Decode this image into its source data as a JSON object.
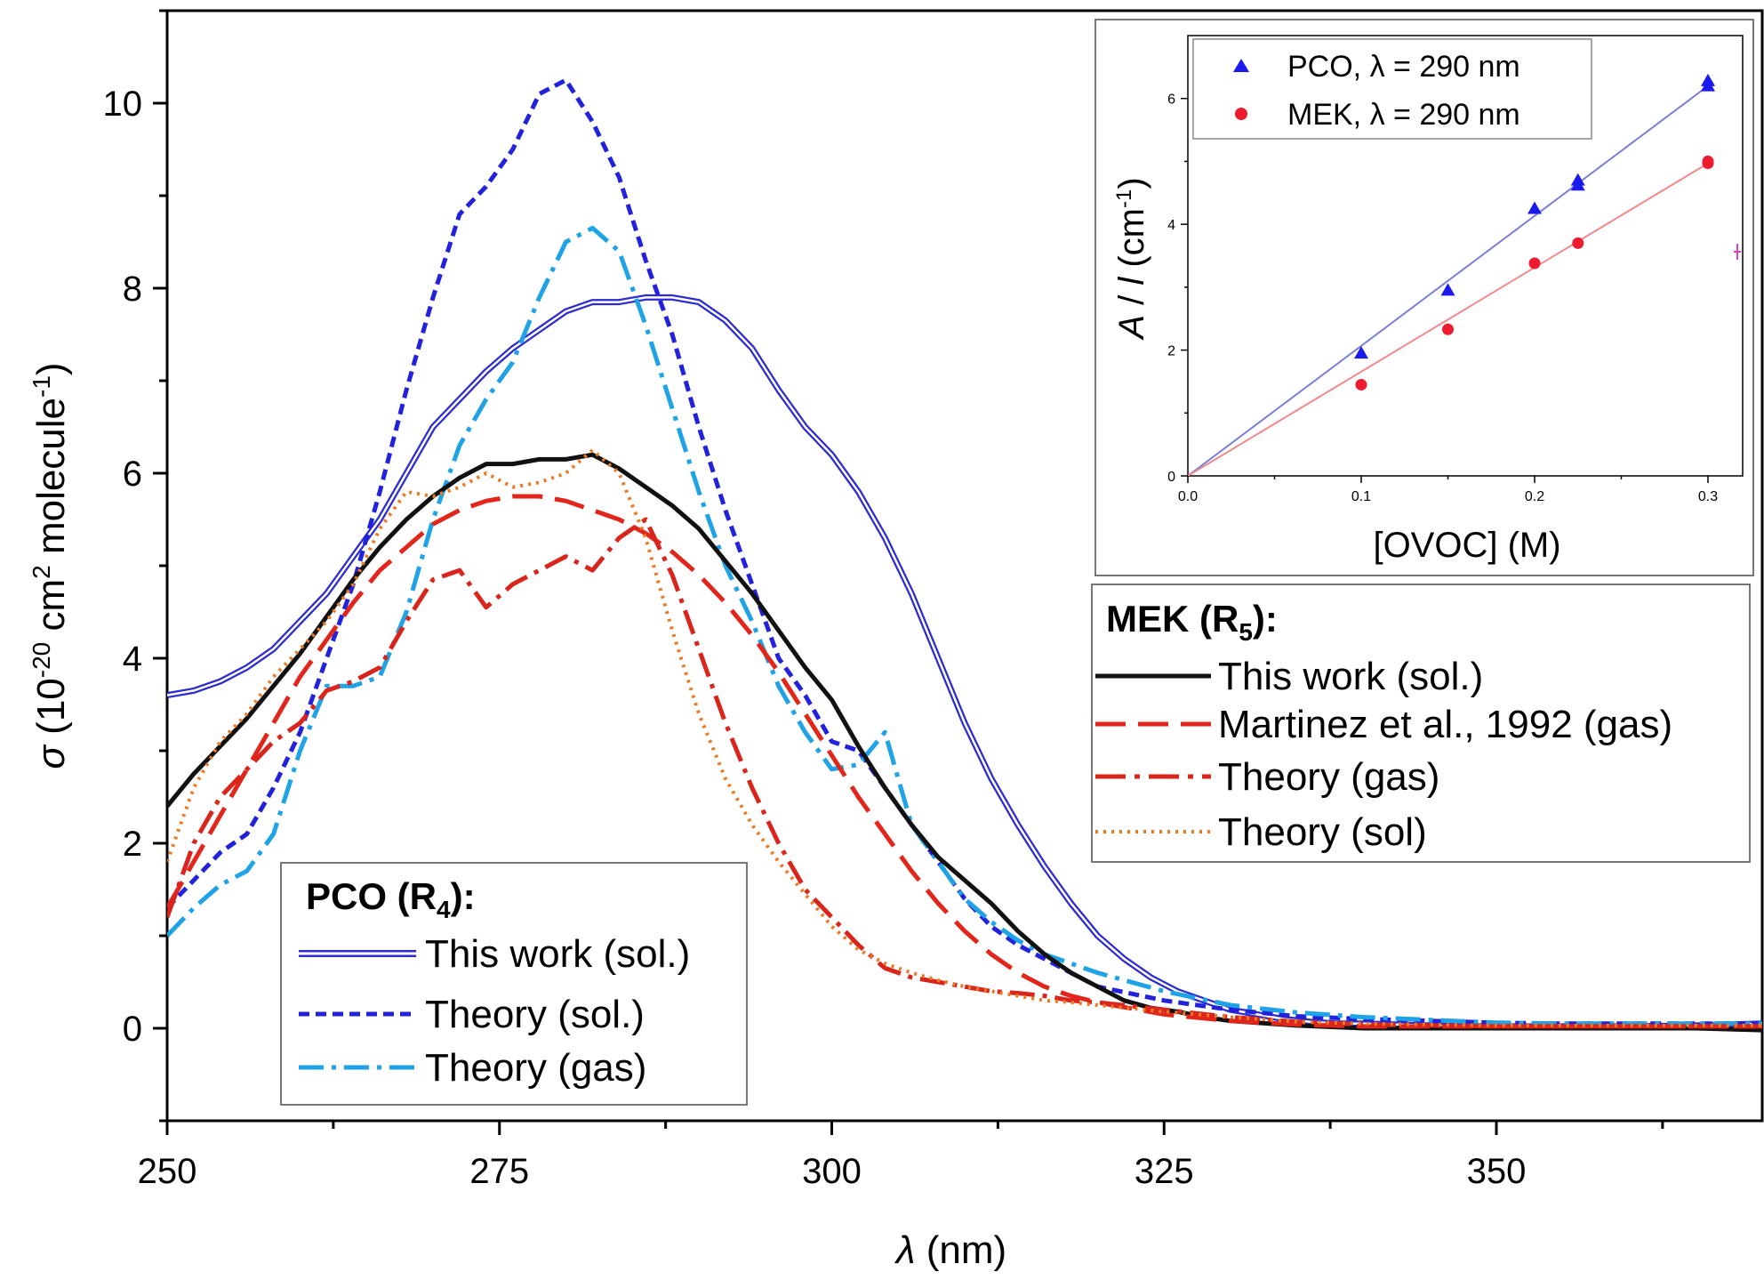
{
  "main_chart": {
    "xlabel": "(nm)",
    "xlabel_symbol": "λ",
    "ylabel": "(10-20 cm2 molecule-1)",
    "ylabel_parts": {
      "symbol": "σ",
      "pre": " (10",
      "sup1": "-20",
      "mid": " cm",
      "sup2": "2",
      "post": " molecule",
      "sup3": "-1",
      "end": ")"
    },
    "x_ticks": [
      "250",
      "275",
      "300",
      "325",
      "350"
    ],
    "y_ticks": [
      "0",
      "2",
      "4",
      "6",
      "8",
      "10"
    ],
    "legend_pco": {
      "heading": "PCO (R4):",
      "heading_main": "PCO (R",
      "heading_sub": "4",
      "heading_end": "):",
      "entries": [
        "This work (sol.)",
        "Theory (sol.)",
        "Theory (gas)"
      ]
    },
    "legend_mek": {
      "heading": "MEK (R5):",
      "heading_main": "MEK (R",
      "heading_sub": "5",
      "heading_end": "):",
      "entries": [
        "This work (sol.)",
        "Martinez et al., 1992 (gas)",
        "Theory (gas)",
        "Theory (sol)"
      ]
    }
  },
  "inset_chart": {
    "xlabel": "[OVOC] (M)",
    "ylabel": "A / l (cm-1)",
    "ylabel_parts": {
      "a": "A",
      "slash": " / ",
      "l": "l",
      "unit": " (cm",
      "sup": "-1",
      "end": ")"
    },
    "x_ticks": [
      "0.0",
      "0.1",
      "0.2",
      "0.3"
    ],
    "y_ticks": [
      "0",
      "2",
      "4",
      "6"
    ],
    "legend": [
      "PCO, λ = 290 nm",
      "MEK, λ = 290 nm"
    ]
  },
  "chart_data": [
    {
      "type": "line",
      "xlabel": "λ (nm)",
      "ylabel": "σ (10-20 cm2 molecule-1)",
      "xlim": [
        250,
        370
      ],
      "ylim": [
        -1,
        11
      ],
      "series": [
        {
          "name": "PCO This work (sol.)",
          "color": "#2b2bcf",
          "style": "double",
          "x": [
            250,
            252,
            254,
            256,
            258,
            260,
            262,
            264,
            266,
            268,
            270,
            272,
            274,
            276,
            278,
            280,
            282,
            284,
            286,
            288,
            290,
            292,
            294,
            296,
            298,
            300,
            302,
            304,
            306,
            308,
            310,
            312,
            314,
            316,
            318,
            320,
            322,
            324,
            326,
            328,
            330,
            332,
            334,
            336,
            338,
            340,
            345,
            350,
            355,
            360,
            365,
            370
          ],
          "y": [
            3.6,
            3.65,
            3.75,
            3.9,
            4.1,
            4.4,
            4.7,
            5.1,
            5.5,
            6.0,
            6.5,
            6.8,
            7.1,
            7.35,
            7.55,
            7.75,
            7.85,
            7.85,
            7.9,
            7.9,
            7.85,
            7.65,
            7.35,
            6.9,
            6.5,
            6.2,
            5.8,
            5.3,
            4.7,
            4.0,
            3.3,
            2.7,
            2.2,
            1.75,
            1.35,
            1.0,
            0.75,
            0.55,
            0.4,
            0.3,
            0.2,
            0.15,
            0.1,
            0.07,
            0.05,
            0.05,
            0.03,
            0.02,
            0.02,
            0.02,
            0.03,
            0.05
          ]
        },
        {
          "name": "PCO Theory (sol.)",
          "color": "#2222dd",
          "style": "short-dash",
          "x": [
            250,
            252,
            254,
            256,
            258,
            260,
            262,
            264,
            266,
            268,
            270,
            272,
            274,
            276,
            278,
            280,
            282,
            284,
            286,
            288,
            290,
            292,
            294,
            296,
            298,
            300,
            302,
            304,
            306,
            308,
            310,
            312,
            314,
            316,
            318,
            320,
            325,
            330,
            335,
            340,
            345,
            350,
            355,
            360,
            365,
            370
          ],
          "y": [
            1.3,
            1.6,
            1.9,
            2.1,
            2.6,
            3.2,
            4.0,
            4.8,
            5.8,
            6.9,
            7.9,
            8.8,
            9.1,
            9.5,
            10.1,
            10.25,
            9.8,
            9.2,
            8.3,
            7.5,
            6.5,
            5.6,
            4.8,
            4.0,
            3.6,
            3.1,
            3.0,
            2.6,
            2.2,
            1.8,
            1.4,
            1.1,
            0.9,
            0.75,
            0.6,
            0.45,
            0.3,
            0.2,
            0.13,
            0.1,
            0.08,
            0.06,
            0.05,
            0.05,
            0.05,
            0.05
          ]
        },
        {
          "name": "PCO Theory (gas)",
          "color": "#1fa3e6",
          "style": "dash-dot",
          "x": [
            250,
            252,
            254,
            256,
            258,
            260,
            262,
            264,
            266,
            268,
            270,
            272,
            274,
            276,
            278,
            280,
            282,
            284,
            286,
            288,
            290,
            292,
            294,
            296,
            298,
            300,
            302,
            304,
            306,
            308,
            310,
            312,
            314,
            316,
            318,
            320,
            325,
            330,
            335,
            340,
            345,
            350,
            355,
            360,
            365,
            370
          ],
          "y": [
            1.0,
            1.3,
            1.55,
            1.7,
            2.1,
            3.0,
            3.7,
            3.7,
            3.8,
            4.5,
            5.5,
            6.3,
            6.8,
            7.2,
            7.9,
            8.5,
            8.65,
            8.4,
            7.6,
            6.7,
            5.8,
            5.0,
            4.4,
            3.7,
            3.2,
            2.8,
            2.85,
            3.2,
            2.2,
            1.8,
            1.4,
            1.15,
            0.95,
            0.8,
            0.7,
            0.6,
            0.4,
            0.25,
            0.17,
            0.12,
            0.09,
            0.06,
            0.05,
            0.05,
            0.05,
            0.05
          ]
        },
        {
          "name": "MEK This work (sol.)",
          "color": "#111111",
          "style": "solid",
          "x": [
            250,
            252,
            254,
            256,
            258,
            260,
            262,
            264,
            266,
            268,
            270,
            272,
            274,
            276,
            278,
            280,
            282,
            284,
            286,
            288,
            290,
            292,
            294,
            296,
            298,
            300,
            302,
            304,
            306,
            308,
            310,
            312,
            314,
            316,
            318,
            320,
            322,
            324,
            326,
            328,
            330,
            335,
            340,
            345,
            350,
            355,
            360,
            365,
            370
          ],
          "y": [
            2.4,
            2.75,
            3.05,
            3.35,
            3.7,
            4.05,
            4.45,
            4.85,
            5.2,
            5.5,
            5.75,
            5.95,
            6.1,
            6.1,
            6.15,
            6.15,
            6.2,
            6.05,
            5.85,
            5.65,
            5.4,
            5.05,
            4.7,
            4.3,
            3.9,
            3.55,
            3.05,
            2.6,
            2.2,
            1.85,
            1.6,
            1.35,
            1.05,
            0.8,
            0.6,
            0.45,
            0.3,
            0.22,
            0.18,
            0.12,
            0.08,
            0.03,
            0.0,
            0.0,
            0.0,
            0.0,
            0.0,
            0.0,
            -0.02
          ]
        },
        {
          "name": "MEK Martinez et al., 1992 (gas)",
          "color": "#e3261c",
          "style": "long-dash",
          "x": [
            250,
            252,
            254,
            256,
            258,
            260,
            262,
            264,
            266,
            268,
            270,
            272,
            274,
            276,
            278,
            280,
            282,
            284,
            286,
            288,
            290,
            292,
            294,
            296,
            298,
            300,
            302,
            304,
            306,
            308,
            310,
            312,
            314,
            316,
            318,
            320,
            325,
            330,
            335,
            340,
            345,
            350,
            355,
            360,
            365,
            370
          ],
          "y": [
            1.3,
            1.8,
            2.3,
            2.8,
            3.3,
            3.8,
            4.2,
            4.6,
            4.95,
            5.2,
            5.45,
            5.6,
            5.7,
            5.75,
            5.75,
            5.7,
            5.6,
            5.5,
            5.35,
            5.15,
            4.9,
            4.6,
            4.25,
            3.85,
            3.4,
            2.95,
            2.5,
            2.1,
            1.7,
            1.35,
            1.05,
            0.8,
            0.6,
            0.45,
            0.35,
            0.28,
            0.15,
            0.08,
            0.04,
            0.02,
            0.02,
            0.02,
            0.02,
            0.02,
            0.02,
            0.02
          ]
        },
        {
          "name": "MEK Theory (gas)",
          "color": "#d9251c",
          "style": "dash-dot",
          "x": [
            250,
            252,
            254,
            256,
            258,
            260,
            262,
            264,
            266,
            268,
            270,
            272,
            274,
            276,
            278,
            280,
            282,
            284,
            286,
            288,
            290,
            292,
            294,
            296,
            298,
            300,
            302,
            304,
            306,
            308,
            310,
            312,
            314,
            316,
            318,
            320,
            325,
            330,
            335,
            340,
            345,
            350,
            355,
            360,
            365,
            370
          ],
          "y": [
            1.2,
            2.0,
            2.5,
            2.8,
            3.1,
            3.3,
            3.65,
            3.75,
            3.9,
            4.4,
            4.85,
            4.95,
            4.55,
            4.8,
            4.95,
            5.1,
            4.95,
            5.3,
            5.5,
            4.9,
            4.1,
            3.3,
            2.6,
            2.0,
            1.5,
            1.2,
            0.9,
            0.65,
            0.55,
            0.5,
            0.45,
            0.4,
            0.38,
            0.35,
            0.3,
            0.28,
            0.2,
            0.12,
            0.07,
            0.04,
            0.03,
            0.02,
            0.02,
            0.02,
            0.02,
            0.02
          ]
        },
        {
          "name": "MEK Theory (sol)",
          "color": "#ec7a24",
          "style": "dotted",
          "x": [
            250,
            252,
            254,
            256,
            258,
            260,
            262,
            264,
            266,
            268,
            270,
            272,
            274,
            276,
            278,
            280,
            282,
            284,
            286,
            288,
            290,
            292,
            294,
            296,
            298,
            300,
            302,
            304,
            306,
            308,
            310,
            312,
            314,
            316,
            318,
            320,
            325,
            330,
            335,
            340,
            345,
            350,
            355,
            360,
            365,
            370
          ],
          "y": [
            1.8,
            2.6,
            3.1,
            3.4,
            3.8,
            4.1,
            4.4,
            4.8,
            5.4,
            5.8,
            5.75,
            5.85,
            6.0,
            5.85,
            5.9,
            6.0,
            6.25,
            6.0,
            5.3,
            4.3,
            3.4,
            2.7,
            2.2,
            1.8,
            1.45,
            1.1,
            0.85,
            0.7,
            0.6,
            0.52,
            0.45,
            0.4,
            0.35,
            0.3,
            0.28,
            0.25,
            0.18,
            0.12,
            0.07,
            0.05,
            0.04,
            0.03,
            0.03,
            0.03,
            0.03,
            0.03
          ]
        }
      ]
    },
    {
      "type": "scatter",
      "xlabel": "[OVOC] (M)",
      "ylabel": "A / l (cm-1)",
      "xlim": [
        0,
        0.32
      ],
      "ylim": [
        0,
        7
      ],
      "series": [
        {
          "name": "PCO, λ = 290 nm",
          "color": "#1a1aee",
          "marker": "triangle",
          "x": [
            0.1,
            0.15,
            0.2,
            0.225,
            0.225,
            0.3,
            0.3
          ],
          "y": [
            1.95,
            2.95,
            4.25,
            4.7,
            4.62,
            6.2,
            6.28
          ],
          "fit": {
            "x": [
              0,
              0.3
            ],
            "y": [
              0,
              6.2
            ],
            "color": "#7a7fd6"
          }
        },
        {
          "name": "MEK, λ = 290 nm",
          "color": "#ee1c2e",
          "marker": "circle",
          "x": [
            0.1,
            0.15,
            0.2,
            0.225,
            0.3,
            0.3
          ],
          "y": [
            1.45,
            2.33,
            3.38,
            3.7,
            4.97,
            5.0
          ],
          "fit": {
            "x": [
              0,
              0.3
            ],
            "y": [
              0,
              4.97
            ],
            "color": "#f08a8f"
          }
        }
      ]
    }
  ]
}
